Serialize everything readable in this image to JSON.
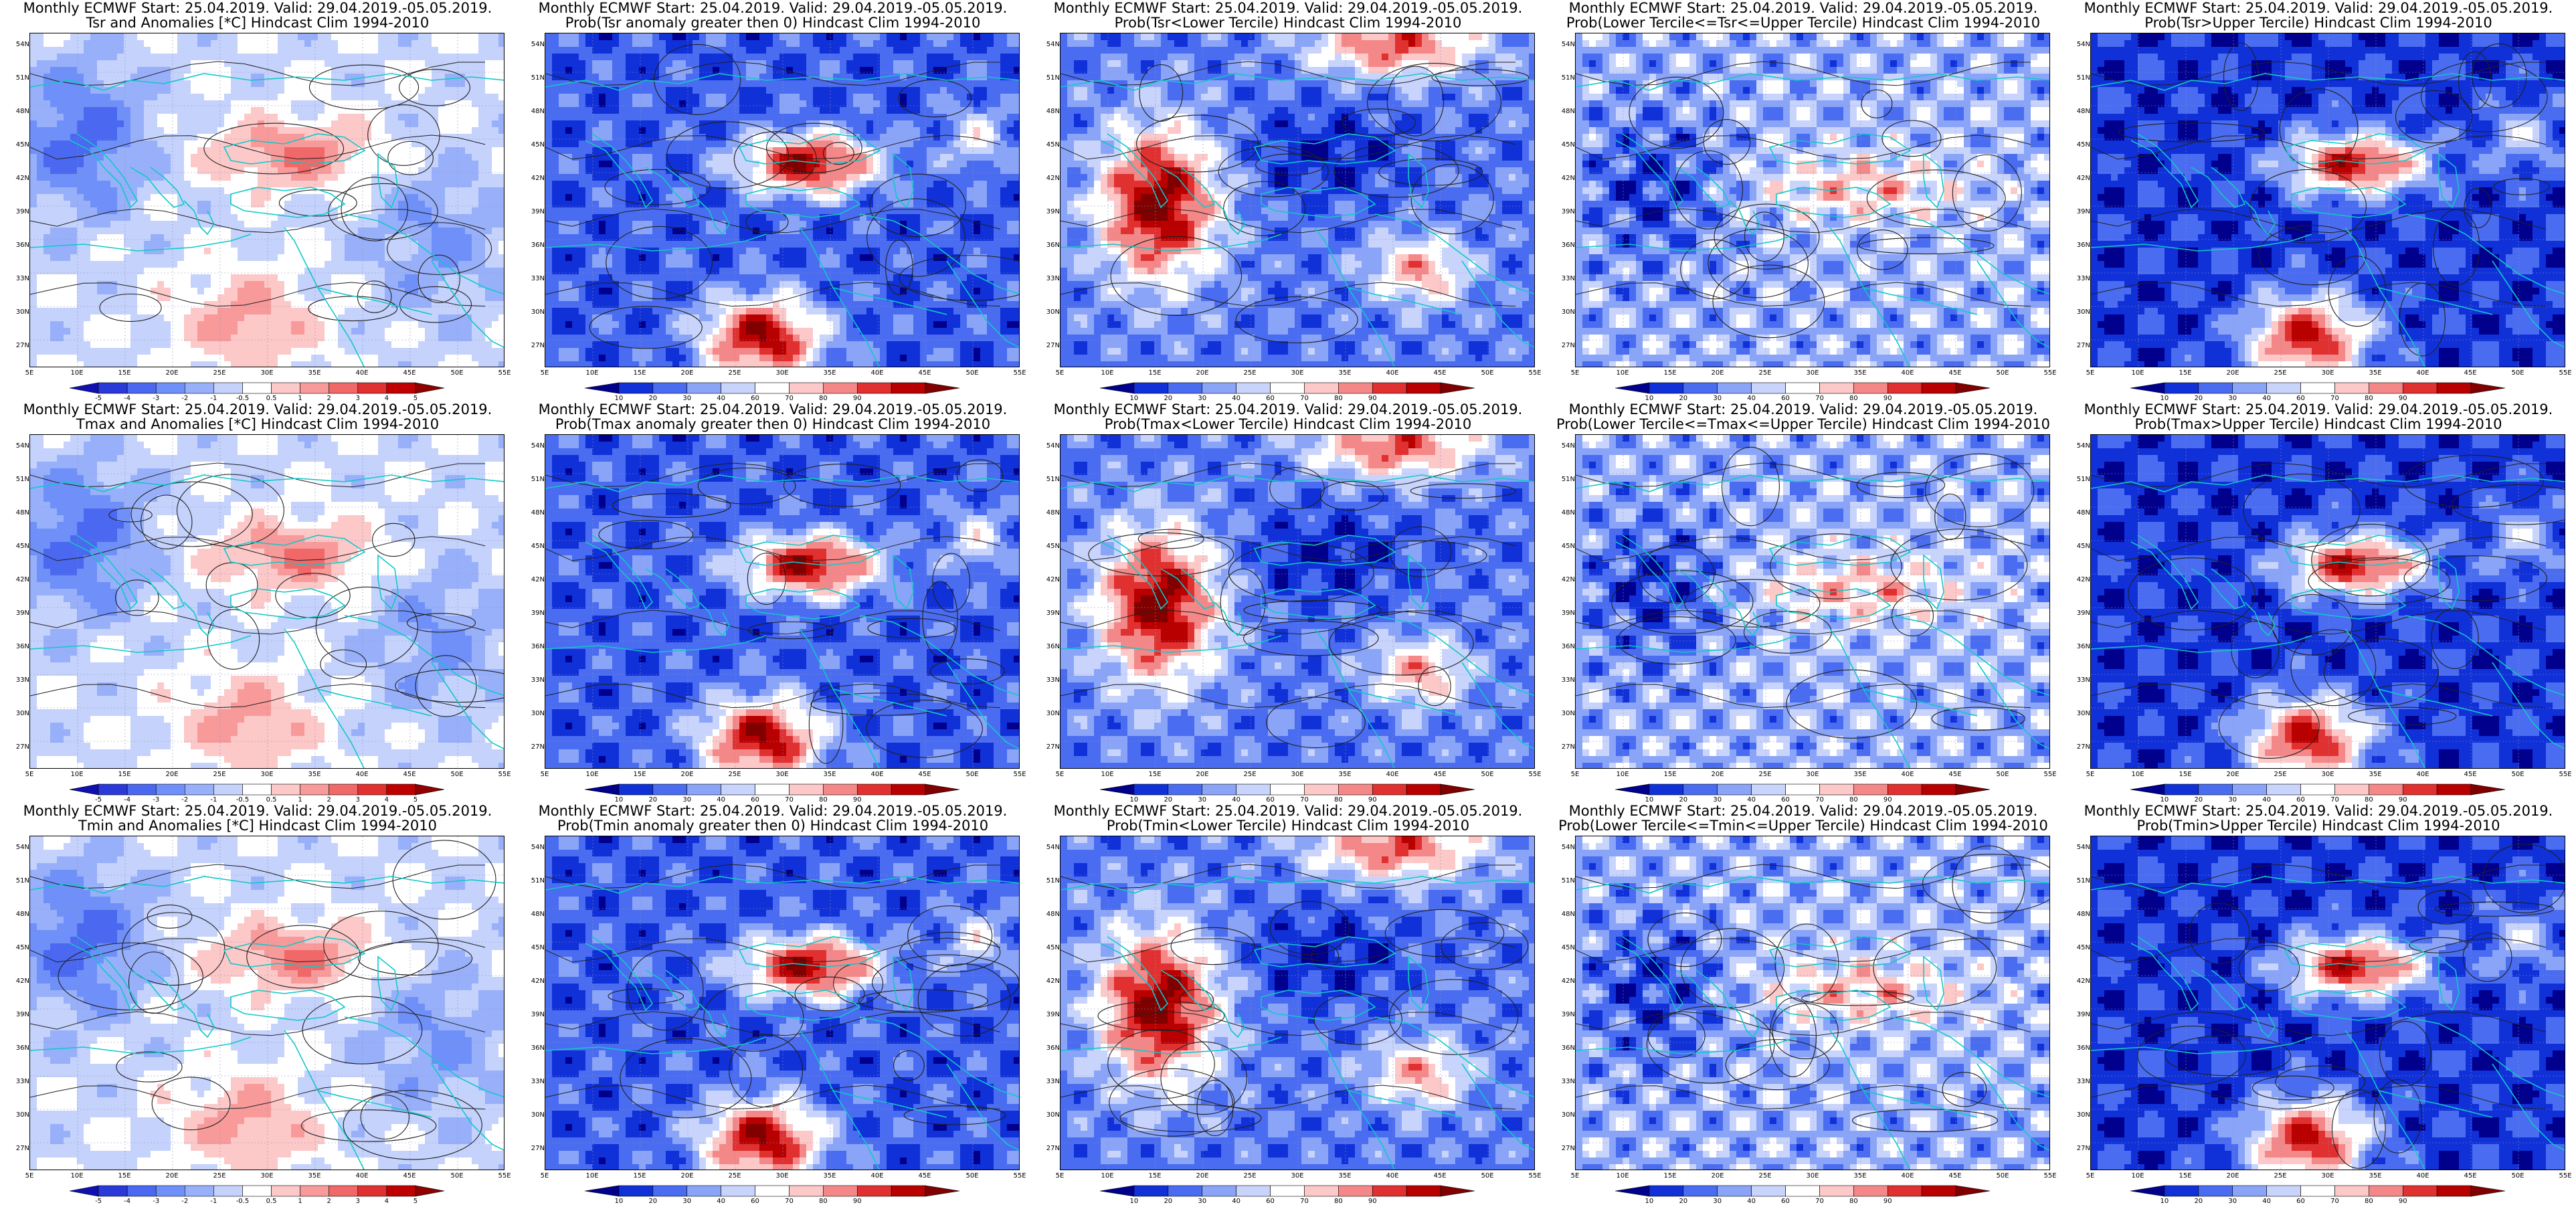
{
  "header": "Monthly ECMWF Start: 25.04.2019. Valid: 29.04.2019.-05.05.2019.",
  "latitude_labels": [
    "54N",
    "51N",
    "48N",
    "45N",
    "42N",
    "39N",
    "36N",
    "33N",
    "30N",
    "27N"
  ],
  "longitude_labels": [
    "5E",
    "10E",
    "15E",
    "20E",
    "25E",
    "30E",
    "35E",
    "40E",
    "45E",
    "50E",
    "55E"
  ],
  "anomaly_scale": {
    "labels": [
      "-5",
      "-4",
      "-3",
      "-2",
      "-1",
      "-0.5",
      "0.5",
      "1",
      "2",
      "3",
      "4",
      "5"
    ],
    "colors": [
      "#1010b0",
      "#2a3ad8",
      "#4a68f0",
      "#6f90f8",
      "#98b0fa",
      "#c4d2fc",
      "#ffffff",
      "#fcc8c8",
      "#f89a9a",
      "#f06868",
      "#e03030",
      "#c00000",
      "#900000"
    ]
  },
  "probability_scale": {
    "labels": [
      "10",
      "20",
      "30",
      "40",
      "60",
      "70",
      "80",
      "90"
    ],
    "colors": [
      "#00008c",
      "#1030d8",
      "#4a6cf0",
      "#8aa4f8",
      "#c8d4fc",
      "#ffffff",
      "#fcc8c8",
      "#f48888",
      "#e03030",
      "#b80000",
      "#800000"
    ]
  },
  "rows": [
    {
      "variable": "Tsr",
      "panels": [
        {
          "title_line2": "Tsr and Anomalies [*C] Hindcast Clim 1994-2010",
          "scale": "anomaly",
          "pattern": "anom"
        },
        {
          "title_line2": "Prob(Tsr anomaly greater then 0) Hindcast Clim 1994-2010",
          "scale": "probability",
          "pattern": "pgt"
        },
        {
          "title_line2": "Prob(Tsr<Lower Tercile) Hindcast Clim 1994-2010",
          "scale": "probability",
          "pattern": "plow"
        },
        {
          "title_line2": "Prob(Lower Tercile<=Tsr<=Upper Tercile) Hindcast Clim 1994-2010",
          "scale": "probability",
          "pattern": "pmid"
        },
        {
          "title_line2": "Prob(Tsr>Upper Tercile) Hindcast Clim 1994-2010",
          "scale": "probability",
          "pattern": "pup"
        }
      ]
    },
    {
      "variable": "Tmax",
      "panels": [
        {
          "title_line2": "Tmax and Anomalies [*C] Hindcast Clim 1994-2010",
          "scale": "anomaly",
          "pattern": "anom"
        },
        {
          "title_line2": "Prob(Tmax anomaly greater then 0) Hindcast Clim 1994-2010",
          "scale": "probability",
          "pattern": "pgt"
        },
        {
          "title_line2": "Prob(Tmax<Lower Tercile) Hindcast Clim 1994-2010",
          "scale": "probability",
          "pattern": "plow"
        },
        {
          "title_line2": "Prob(Lower Tercile<=Tmax<=Upper Tercile) Hindcast Clim 1994-2010",
          "scale": "probability",
          "pattern": "pmid"
        },
        {
          "title_line2": "Prob(Tmax>Upper Tercile) Hindcast Clim 1994-2010",
          "scale": "probability",
          "pattern": "pup"
        }
      ]
    },
    {
      "variable": "Tmin",
      "panels": [
        {
          "title_line2": "Tmin and Anomalies [*C] Hindcast Clim 1994-2010",
          "scale": "anomaly",
          "pattern": "anom"
        },
        {
          "title_line2": "Prob(Tmin anomaly greater then 0) Hindcast Clim 1994-2010",
          "scale": "probability",
          "pattern": "pgt"
        },
        {
          "title_line2": "Prob(Tmin<Lower Tercile) Hindcast Clim 1994-2010",
          "scale": "probability",
          "pattern": "plow"
        },
        {
          "title_line2": "Prob(Lower Tercile<=Tmin<=Upper Tercile) Hindcast Clim 1994-2010",
          "scale": "probability",
          "pattern": "pmid"
        },
        {
          "title_line2": "Prob(Tmin>Upper Tercile) Hindcast Clim 1994-2010",
          "scale": "probability",
          "pattern": "pup"
        }
      ]
    }
  ]
}
